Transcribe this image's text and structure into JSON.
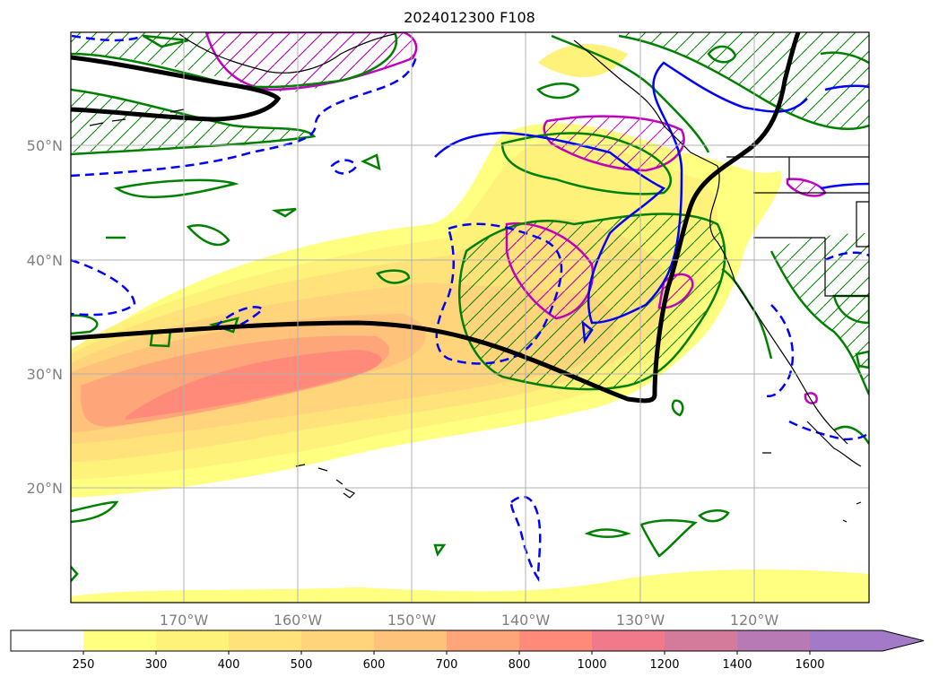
{
  "title": "2024012300 F108",
  "map": {
    "lon_ticks": [
      "170°W",
      "160°W",
      "150°W",
      "140°W",
      "130°W",
      "120°W"
    ],
    "lat_ticks": [
      "50°N",
      "40°N",
      "30°N",
      "20°N"
    ],
    "extent": {
      "lon_min": -180,
      "lon_max": -110,
      "lat_min": 10,
      "lat_max": 60
    }
  },
  "colorbar": {
    "levels": [
      "250",
      "300",
      "400",
      "500",
      "600",
      "700",
      "800",
      "1000",
      "1200",
      "1400",
      "1600"
    ],
    "colors": [
      "#ffffff",
      "#ffff80",
      "#fff27a",
      "#ffe27a",
      "#ffd47a",
      "#ffc27a",
      "#ffa57a",
      "#ff8a7a",
      "#f07a8a",
      "#d47a9a",
      "#b87ab4",
      "#a37ac8"
    ],
    "extend": "max"
  },
  "legend_colors": {
    "ivt_fill": "#ffcf73",
    "green_contour": "#008000",
    "blue_contour": "#0000ff",
    "magenta_contour": "#c000c0",
    "black_line": "#000000",
    "grid": "#b0b0b0"
  }
}
